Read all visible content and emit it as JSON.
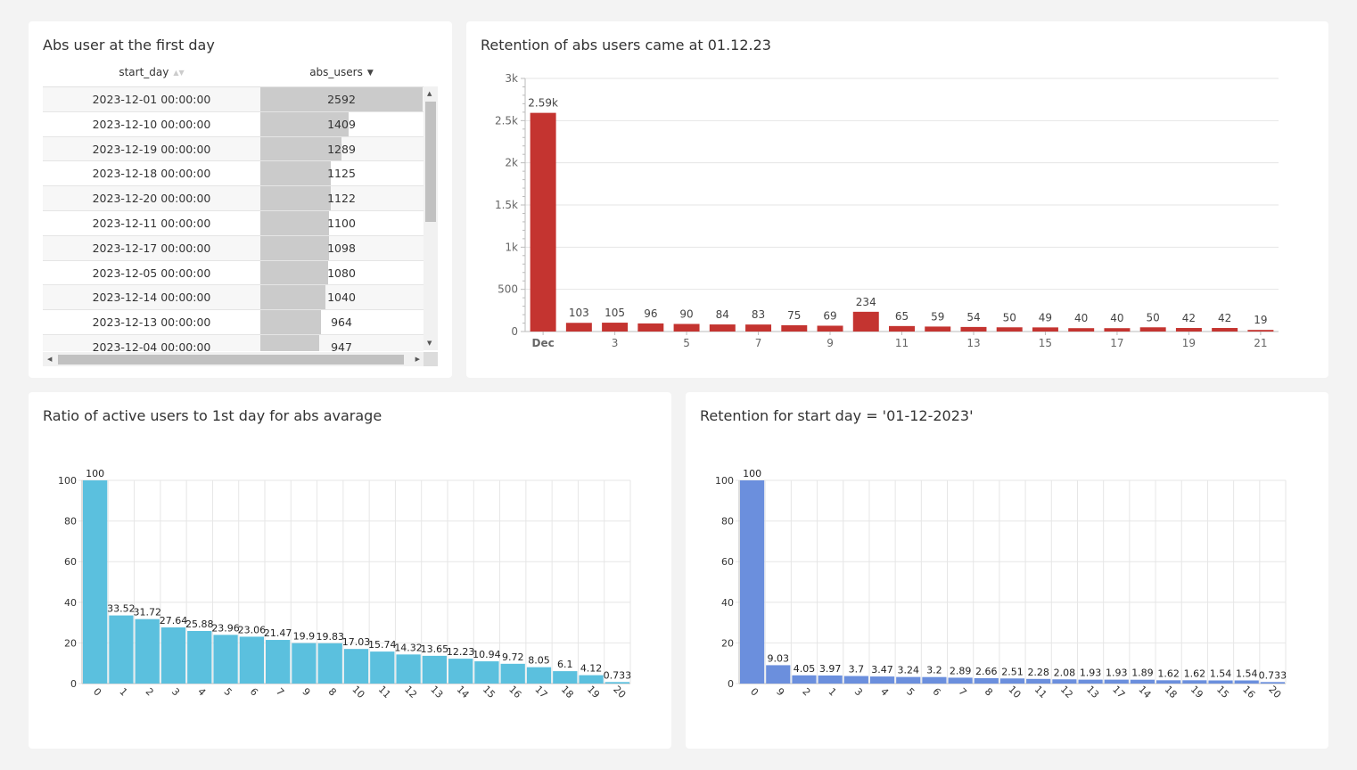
{
  "colors": {
    "red": "#c43430",
    "teal": "#5bc0de",
    "blue": "#6b8fdd",
    "table_bar": "#cbcbcb"
  },
  "table": {
    "title": "Abs user at the first day",
    "columns": [
      "start_day",
      "abs_users"
    ],
    "max_value": 2592,
    "rows": [
      {
        "start_day": "2023-12-01 00:00:00",
        "abs_users": 2592
      },
      {
        "start_day": "2023-12-10 00:00:00",
        "abs_users": 1409
      },
      {
        "start_day": "2023-12-19 00:00:00",
        "abs_users": 1289
      },
      {
        "start_day": "2023-12-18 00:00:00",
        "abs_users": 1125
      },
      {
        "start_day": "2023-12-20 00:00:00",
        "abs_users": 1122
      },
      {
        "start_day": "2023-12-11 00:00:00",
        "abs_users": 1100
      },
      {
        "start_day": "2023-12-17 00:00:00",
        "abs_users": 1098
      },
      {
        "start_day": "2023-12-05 00:00:00",
        "abs_users": 1080
      },
      {
        "start_day": "2023-12-14 00:00:00",
        "abs_users": 1040
      },
      {
        "start_day": "2023-12-13 00:00:00",
        "abs_users": 964
      },
      {
        "start_day": "2023-12-04 00:00:00",
        "abs_users": 947
      }
    ],
    "scroll_icons": {
      "up": "arrow-up-icon",
      "down": "arrow-down-icon",
      "left": "arrow-left-icon",
      "right": "arrow-right-icon"
    }
  },
  "chart_data": [
    {
      "id": "retention",
      "type": "bar",
      "title": "Retention of abs users came at 01.12.23",
      "xlabel": "",
      "ylabel": "",
      "x": [
        1,
        2,
        3,
        4,
        5,
        6,
        7,
        8,
        9,
        10,
        11,
        12,
        13,
        14,
        15,
        16,
        17,
        18,
        19,
        20,
        21
      ],
      "values": [
        2592,
        103,
        105,
        96,
        90,
        84,
        83,
        75,
        69,
        234,
        65,
        59,
        54,
        50,
        49,
        40,
        40,
        50,
        42,
        42,
        19
      ],
      "data_labels": [
        "2.59k",
        "103",
        "105",
        "96",
        "90",
        "84",
        "83",
        "75",
        "69",
        "234",
        "65",
        "59",
        "54",
        "50",
        "49",
        "40",
        "40",
        "50",
        "42",
        "42",
        "19"
      ],
      "x_tick_labels": [
        {
          "x": 1,
          "label": "Dec"
        },
        {
          "x": 3,
          "label": "3"
        },
        {
          "x": 5,
          "label": "5"
        },
        {
          "x": 7,
          "label": "7"
        },
        {
          "x": 9,
          "label": "9"
        },
        {
          "x": 11,
          "label": "11"
        },
        {
          "x": 13,
          "label": "13"
        },
        {
          "x": 15,
          "label": "15"
        },
        {
          "x": 17,
          "label": "17"
        },
        {
          "x": 19,
          "label": "19"
        },
        {
          "x": 21,
          "label": "21"
        }
      ],
      "y_ticks": [
        {
          "v": 0,
          "label": "0"
        },
        {
          "v": 500,
          "label": "500"
        },
        {
          "v": 1000,
          "label": "1k"
        },
        {
          "v": 1500,
          "label": "1.5k"
        },
        {
          "v": 2000,
          "label": "2k"
        },
        {
          "v": 2500,
          "label": "2.5k"
        },
        {
          "v": 3000,
          "label": "3k"
        }
      ],
      "ylim": [
        0,
        3000
      ],
      "grid": true,
      "color": "#c43430"
    },
    {
      "id": "ratio",
      "type": "bar",
      "title": "Ratio of active users to 1st day for abs avarage",
      "xlabel": "",
      "ylabel": "",
      "categories": [
        "0",
        "1",
        "2",
        "3",
        "4",
        "5",
        "6",
        "7",
        "9",
        "8",
        "10",
        "11",
        "12",
        "13",
        "14",
        "15",
        "16",
        "17",
        "18",
        "19",
        "20"
      ],
      "values": [
        100,
        33.52,
        31.72,
        27.64,
        25.88,
        23.96,
        23.06,
        21.47,
        19.9,
        19.83,
        17.03,
        15.74,
        14.32,
        13.65,
        12.23,
        10.94,
        9.72,
        8.05,
        6.1,
        4.12,
        0.733
      ],
      "data_labels": [
        "100",
        "33.52",
        "31.72",
        "27.64",
        "25.88",
        "23.96",
        "23.06",
        "21.47",
        "19.9",
        "19.83",
        "17.03",
        "15.74",
        "14.32",
        "13.65",
        "12.23",
        "10.94",
        "9.72",
        "8.05",
        "6.1",
        "4.12",
        "0.733"
      ],
      "y_ticks": [
        0,
        20,
        40,
        60,
        80,
        100
      ],
      "ylim": [
        0,
        100
      ],
      "grid": true,
      "color": "#5bc0de"
    },
    {
      "id": "start-day",
      "type": "bar",
      "title": "Retention for start day = '01-12-2023'",
      "xlabel": "",
      "ylabel": "",
      "categories": [
        "0",
        "9",
        "2",
        "1",
        "3",
        "4",
        "5",
        "6",
        "7",
        "8",
        "10",
        "11",
        "12",
        "13",
        "17",
        "14",
        "18",
        "19",
        "15",
        "16",
        "20"
      ],
      "values": [
        100,
        9.03,
        4.05,
        3.97,
        3.7,
        3.47,
        3.24,
        3.2,
        2.89,
        2.66,
        2.51,
        2.28,
        2.08,
        1.93,
        1.93,
        1.89,
        1.62,
        1.62,
        1.54,
        1.54,
        0.733
      ],
      "data_labels": [
        "100",
        "9.03",
        "4.05",
        "3.97",
        "3.7",
        "3.47",
        "3.24",
        "3.2",
        "2.89",
        "2.66",
        "2.51",
        "2.28",
        "2.08",
        "1.93",
        "1.93",
        "1.89",
        "1.62",
        "1.62",
        "1.54",
        "1.54",
        "0.733"
      ],
      "y_ticks": [
        0,
        20,
        40,
        60,
        80,
        100
      ],
      "ylim": [
        0,
        100
      ],
      "grid": true,
      "color": "#6b8fdd"
    }
  ]
}
